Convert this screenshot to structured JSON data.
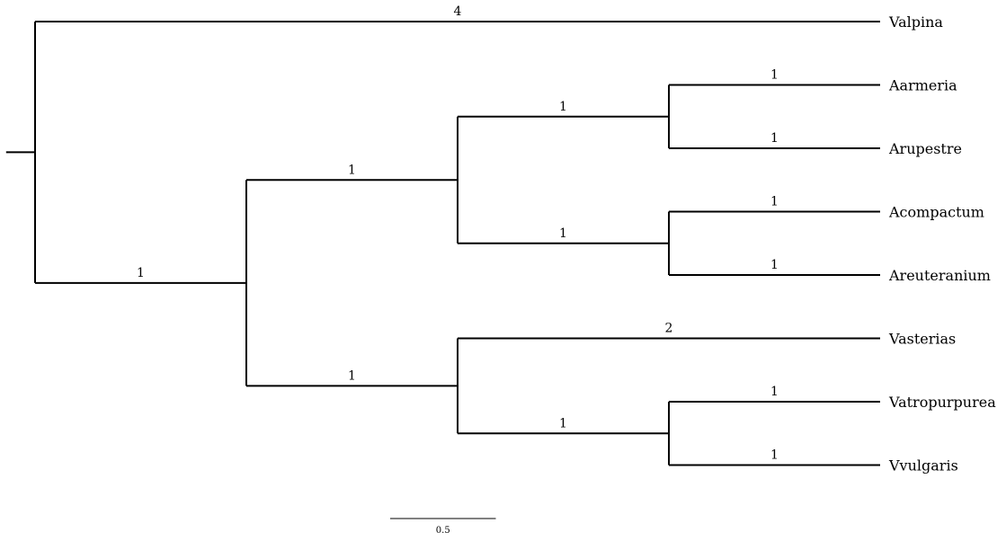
{
  "tree": {
    "type": "phylogram",
    "root": {
      "children": [
        {
          "name": "Valpina",
          "length": 4
        },
        {
          "length": 1,
          "children": [
            {
              "length": 1,
              "children": [
                {
                  "length": 1,
                  "children": [
                    {
                      "name": "Aarmeria",
                      "length": 1
                    },
                    {
                      "name": "Arupestre",
                      "length": 1
                    }
                  ]
                },
                {
                  "length": 1,
                  "children": [
                    {
                      "name": "Acompactum",
                      "length": 1
                    },
                    {
                      "name": "Areuteranium",
                      "length": 1
                    }
                  ]
                }
              ]
            },
            {
              "length": 1,
              "children": [
                {
                  "name": "Vasterias",
                  "length": 2
                },
                {
                  "length": 1,
                  "children": [
                    {
                      "name": "Vatropurpurea",
                      "length": 1
                    },
                    {
                      "name": "Vvulgaris",
                      "length": 1
                    }
                  ]
                }
              ]
            }
          ]
        }
      ]
    }
  },
  "scale_bar": {
    "value": 0.5,
    "label": "0.5"
  }
}
